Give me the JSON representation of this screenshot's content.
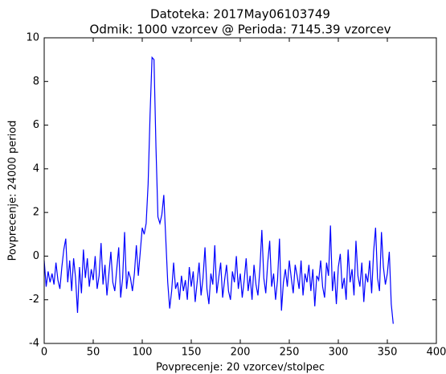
{
  "chart_data": {
    "type": "line",
    "title": "Datoteka: 2017May06103749",
    "subtitle": "Odmik: 1000 vzorcev @ Perioda: 7145.39 vzorcev",
    "x_label": "Povprecenje: 20 vzorcev/stolpec",
    "y_label": "Povprecenje: 24000 period",
    "xlim": [
      0,
      400
    ],
    "xticks": [
      0,
      50,
      100,
      150,
      200,
      250,
      300,
      350,
      400
    ],
    "ylim": [
      -4,
      10
    ],
    "yticks": [
      -4,
      -2,
      0,
      2,
      4,
      6,
      8,
      10
    ],
    "series": [
      {
        "color": "#0000ff",
        "x": [
          0,
          2,
          4,
          6,
          8,
          10,
          12,
          14,
          16,
          18,
          20,
          22,
          24,
          26,
          28,
          30,
          32,
          34,
          36,
          38,
          40,
          42,
          44,
          46,
          48,
          50,
          52,
          54,
          56,
          58,
          60,
          62,
          64,
          66,
          68,
          70,
          72,
          74,
          76,
          78,
          80,
          82,
          84,
          86,
          88,
          90,
          92,
          94,
          96,
          98,
          100,
          102,
          104,
          106,
          108,
          110,
          112,
          114,
          116,
          118,
          120,
          122,
          124,
          126,
          128,
          130,
          132,
          134,
          136,
          138,
          140,
          142,
          144,
          146,
          148,
          150,
          152,
          154,
          156,
          158,
          160,
          162,
          164,
          166,
          168,
          170,
          172,
          174,
          176,
          178,
          180,
          182,
          184,
          186,
          188,
          190,
          192,
          194,
          196,
          198,
          200,
          202,
          204,
          206,
          208,
          210,
          212,
          214,
          216,
          218,
          220,
          222,
          224,
          226,
          228,
          230,
          232,
          234,
          236,
          238,
          240,
          242,
          244,
          246,
          248,
          250,
          252,
          254,
          256,
          258,
          260,
          262,
          264,
          266,
          268,
          270,
          272,
          274,
          276,
          278,
          280,
          282,
          284,
          286,
          288,
          290,
          292,
          294,
          296,
          298,
          300,
          302,
          304,
          306,
          308,
          310,
          312,
          314,
          316,
          318,
          320,
          322,
          324,
          326,
          328,
          330,
          332,
          334,
          336,
          338,
          340,
          342,
          344,
          346,
          348,
          350,
          352,
          354,
          356
        ],
        "values": [
          -0.2,
          -1.4,
          -0.7,
          -1.2,
          -0.8,
          -1.3,
          -0.3,
          -1.1,
          -1.5,
          -0.5,
          0.3,
          0.8,
          -1.2,
          -0.2,
          -1.6,
          -0.1,
          -1.0,
          -2.6,
          -0.5,
          -1.7,
          0.3,
          -1.0,
          -0.1,
          -1.4,
          -0.6,
          -1.1,
          0.0,
          -1.5,
          -0.9,
          0.6,
          -1.3,
          -0.4,
          -1.8,
          -0.8,
          0.2,
          -1.2,
          -1.6,
          -0.6,
          0.4,
          -1.9,
          -1.0,
          1.1,
          -1.5,
          -0.7,
          -1.0,
          -1.6,
          -0.8,
          0.5,
          -0.9,
          0.2,
          1.3,
          1.0,
          1.5,
          3.3,
          6.5,
          9.1,
          9.0,
          5.0,
          1.8,
          1.5,
          1.9,
          2.8,
          0.8,
          -1.2,
          -2.4,
          -1.6,
          -0.3,
          -1.5,
          -1.2,
          -2.0,
          -0.9,
          -1.6,
          -1.1,
          -2.0,
          -0.5,
          -1.4,
          -0.7,
          -2.1,
          -1.2,
          -0.3,
          -1.8,
          -1.0,
          0.4,
          -1.5,
          -2.2,
          -0.8,
          -1.3,
          0.5,
          -1.7,
          -1.0,
          -0.3,
          -1.9,
          -1.1,
          -0.4,
          -1.6,
          -2.0,
          -0.7,
          -1.2,
          0.0,
          -1.5,
          -0.8,
          -1.9,
          -1.1,
          -0.1,
          -1.6,
          -0.9,
          -2.0,
          -0.4,
          -1.3,
          -1.8,
          -0.6,
          1.2,
          -1.0,
          -1.7,
          -0.3,
          0.7,
          -1.4,
          -0.8,
          -2.0,
          -1.1,
          0.8,
          -2.5,
          -1.2,
          -0.6,
          -1.4,
          -0.2,
          -1.0,
          -1.7,
          -0.4,
          -0.9,
          -1.5,
          -0.2,
          -1.8,
          -0.8,
          -1.2,
          -0.4,
          -1.6,
          -0.6,
          -2.3,
          -0.9,
          -1.1,
          -0.2,
          -1.4,
          -1.9,
          -0.3,
          -0.9,
          1.4,
          -1.6,
          -0.7,
          -2.2,
          -0.5,
          0.1,
          -1.5,
          -1.0,
          -2.0,
          0.3,
          -1.2,
          -0.6,
          -1.8,
          0.7,
          -0.9,
          -1.4,
          -0.3,
          -2.1,
          -0.8,
          -1.2,
          -0.2,
          -1.7,
          0.2,
          1.3,
          -1.0,
          -1.6,
          1.1,
          -0.5,
          -1.3,
          -0.8,
          0.2,
          -2.2,
          -3.1
        ]
      }
    ]
  }
}
